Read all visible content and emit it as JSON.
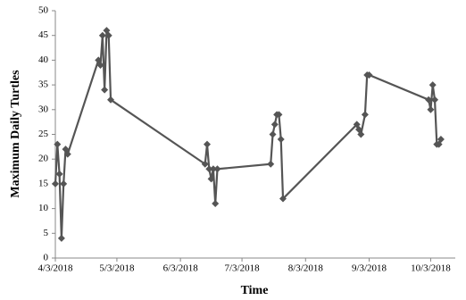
{
  "chart_data": {
    "type": "line",
    "x_label": "Time",
    "y_label": "Maximum Daily Turtles",
    "x": [
      "4/3/2018",
      "4/4/2018",
      "4/5/2018",
      "4/6/2018",
      "4/7/2018",
      "4/8/2018",
      "4/9/2018",
      "4/24/2018",
      "4/25/2018",
      "4/26/2018",
      "4/27/2018",
      "4/28/2018",
      "4/29/2018",
      "4/30/2018",
      "6/15/2018",
      "6/16/2018",
      "6/17/2018",
      "6/18/2018",
      "6/19/2018",
      "6/20/2018",
      "6/21/2018",
      "7/17/2018",
      "7/18/2018",
      "7/19/2018",
      "7/20/2018",
      "7/21/2018",
      "7/22/2018",
      "7/23/2018",
      "8/28/2018",
      "8/29/2018",
      "8/30/2018",
      "9/1/2018",
      "9/2/2018",
      "9/3/2018",
      "10/2/2018",
      "10/3/2018",
      "10/4/2018",
      "10/5/2018",
      "10/6/2018",
      "10/7/2018",
      "10/8/2018"
    ],
    "series": [
      {
        "name": "Maximum Daily Turtles",
        "color": "#555555",
        "values": [
          15,
          23,
          17,
          4,
          15,
          22,
          21,
          40,
          39,
          45,
          34,
          46,
          45,
          32,
          19,
          23,
          18,
          16,
          18,
          11,
          18,
          19,
          25,
          27,
          29,
          29,
          24,
          12,
          27,
          26,
          25,
          29,
          37,
          37,
          32,
          30,
          35,
          32,
          23,
          23,
          24
        ]
      }
    ],
    "xlim": [
      "4/3/2018",
      "10/15/2018"
    ],
    "xticks": [
      "4/3/2018",
      "5/3/2018",
      "6/3/2018",
      "7/3/2018",
      "8/3/2018",
      "9/3/2018",
      "10/3/2018"
    ],
    "ylim": [
      0,
      50
    ],
    "yticks": [
      0,
      5,
      10,
      15,
      20,
      25,
      30,
      35,
      40,
      45,
      50
    ]
  }
}
